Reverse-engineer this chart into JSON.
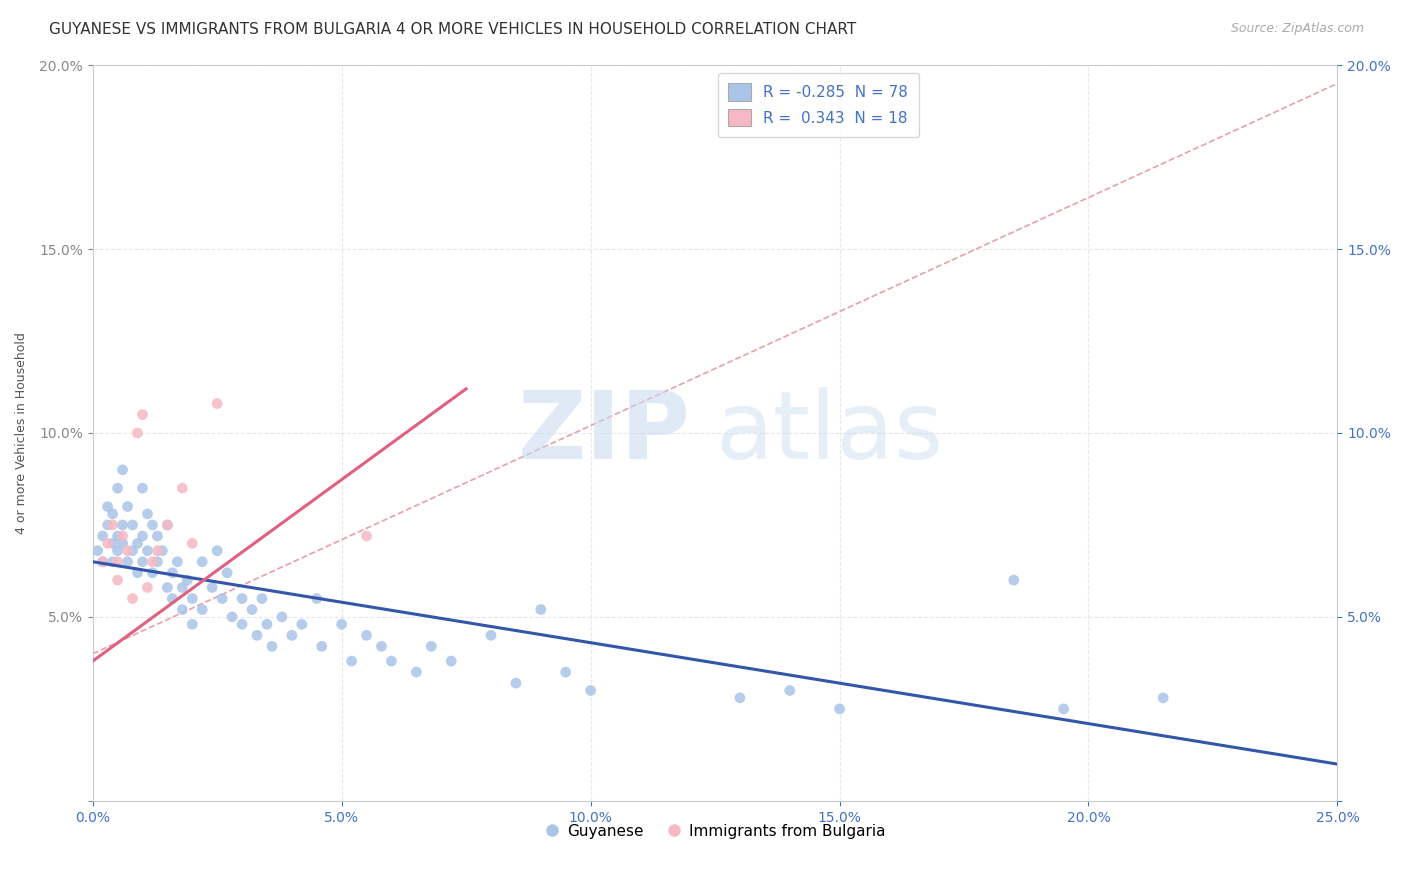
{
  "title": "GUYANESE VS IMMIGRANTS FROM BULGARIA 4 OR MORE VEHICLES IN HOUSEHOLD CORRELATION CHART",
  "source": "Source: ZipAtlas.com",
  "ylabel": "4 or more Vehicles in Household",
  "xlim": [
    0.0,
    0.25
  ],
  "ylim": [
    0.0,
    0.2
  ],
  "xtick_vals": [
    0.0,
    0.05,
    0.1,
    0.15,
    0.2,
    0.25
  ],
  "ytick_vals": [
    0.0,
    0.05,
    0.1,
    0.15,
    0.2
  ],
  "legend_labels_bottom": [
    "Guyanese",
    "Immigrants from Bulgaria"
  ],
  "watermark_zip": "ZIP",
  "watermark_atlas": "atlas",
  "background_color": "#ffffff",
  "plot_bg_color": "#ffffff",
  "grid_color": "#e8e8e8",
  "guyanese_color": "#aac4e8",
  "bulgaria_color": "#f5b8c4",
  "guyanese_line_color": "#3355aa",
  "bulgaria_line_color": "#e06080",
  "trendline_dashed_color": "#e8a0a8",
  "R_guyanese": -0.285,
  "N_guyanese": 78,
  "R_bulgaria": 0.343,
  "N_bulgaria": 18,
  "title_fontsize": 11,
  "axis_label_fontsize": 9,
  "tick_fontsize": 10,
  "legend_fontsize": 11,
  "guyanese_line_x": [
    0.0,
    0.25
  ],
  "guyanese_line_y": [
    0.065,
    0.01
  ],
  "bulgaria_line_x": [
    0.0,
    0.075
  ],
  "bulgaria_line_y": [
    0.038,
    0.112
  ],
  "dashed_line_x": [
    0.0,
    0.25
  ],
  "dashed_line_y": [
    0.04,
    0.195
  ],
  "guyanese_scatter": [
    [
      0.001,
      0.068
    ],
    [
      0.002,
      0.072
    ],
    [
      0.002,
      0.065
    ],
    [
      0.003,
      0.08
    ],
    [
      0.003,
      0.075
    ],
    [
      0.004,
      0.078
    ],
    [
      0.004,
      0.07
    ],
    [
      0.004,
      0.065
    ],
    [
      0.005,
      0.085
    ],
    [
      0.005,
      0.072
    ],
    [
      0.005,
      0.068
    ],
    [
      0.006,
      0.09
    ],
    [
      0.006,
      0.075
    ],
    [
      0.006,
      0.07
    ],
    [
      0.007,
      0.08
    ],
    [
      0.007,
      0.065
    ],
    [
      0.008,
      0.075
    ],
    [
      0.008,
      0.068
    ],
    [
      0.009,
      0.07
    ],
    [
      0.009,
      0.062
    ],
    [
      0.01,
      0.085
    ],
    [
      0.01,
      0.072
    ],
    [
      0.01,
      0.065
    ],
    [
      0.011,
      0.078
    ],
    [
      0.011,
      0.068
    ],
    [
      0.012,
      0.075
    ],
    [
      0.012,
      0.062
    ],
    [
      0.013,
      0.072
    ],
    [
      0.013,
      0.065
    ],
    [
      0.014,
      0.068
    ],
    [
      0.015,
      0.075
    ],
    [
      0.015,
      0.058
    ],
    [
      0.016,
      0.062
    ],
    [
      0.016,
      0.055
    ],
    [
      0.017,
      0.065
    ],
    [
      0.018,
      0.058
    ],
    [
      0.018,
      0.052
    ],
    [
      0.019,
      0.06
    ],
    [
      0.02,
      0.055
    ],
    [
      0.02,
      0.048
    ],
    [
      0.022,
      0.065
    ],
    [
      0.022,
      0.052
    ],
    [
      0.024,
      0.058
    ],
    [
      0.025,
      0.068
    ],
    [
      0.026,
      0.055
    ],
    [
      0.027,
      0.062
    ],
    [
      0.028,
      0.05
    ],
    [
      0.03,
      0.055
    ],
    [
      0.03,
      0.048
    ],
    [
      0.032,
      0.052
    ],
    [
      0.033,
      0.045
    ],
    [
      0.034,
      0.055
    ],
    [
      0.035,
      0.048
    ],
    [
      0.036,
      0.042
    ],
    [
      0.038,
      0.05
    ],
    [
      0.04,
      0.045
    ],
    [
      0.042,
      0.048
    ],
    [
      0.045,
      0.055
    ],
    [
      0.046,
      0.042
    ],
    [
      0.05,
      0.048
    ],
    [
      0.052,
      0.038
    ],
    [
      0.055,
      0.045
    ],
    [
      0.058,
      0.042
    ],
    [
      0.06,
      0.038
    ],
    [
      0.065,
      0.035
    ],
    [
      0.068,
      0.042
    ],
    [
      0.072,
      0.038
    ],
    [
      0.08,
      0.045
    ],
    [
      0.085,
      0.032
    ],
    [
      0.09,
      0.052
    ],
    [
      0.095,
      0.035
    ],
    [
      0.1,
      0.03
    ],
    [
      0.13,
      0.028
    ],
    [
      0.14,
      0.03
    ],
    [
      0.15,
      0.025
    ],
    [
      0.185,
      0.06
    ],
    [
      0.195,
      0.025
    ],
    [
      0.215,
      0.028
    ]
  ],
  "bulgaria_scatter": [
    [
      0.002,
      0.065
    ],
    [
      0.003,
      0.07
    ],
    [
      0.004,
      0.075
    ],
    [
      0.005,
      0.065
    ],
    [
      0.005,
      0.06
    ],
    [
      0.006,
      0.072
    ],
    [
      0.007,
      0.068
    ],
    [
      0.008,
      0.055
    ],
    [
      0.009,
      0.1
    ],
    [
      0.01,
      0.105
    ],
    [
      0.011,
      0.058
    ],
    [
      0.012,
      0.065
    ],
    [
      0.013,
      0.068
    ],
    [
      0.015,
      0.075
    ],
    [
      0.018,
      0.085
    ],
    [
      0.02,
      0.07
    ],
    [
      0.025,
      0.108
    ],
    [
      0.055,
      0.072
    ]
  ]
}
